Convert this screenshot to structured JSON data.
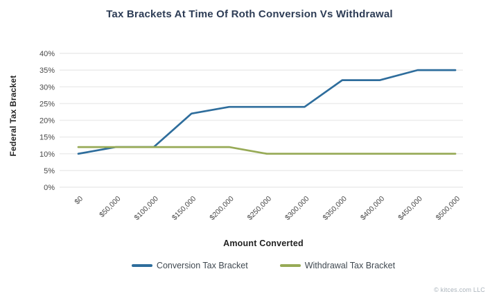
{
  "footer": "© kitces.com LLC",
  "colors": {
    "title": "#2d3c55",
    "grid": "#ececec",
    "tick_label": "#474747",
    "axis_title": "#1f1f1f",
    "legend_label": "#3f4850",
    "footer": "#aab3bb",
    "background": "#ffffff",
    "conversion_line": "#2e6d9c",
    "withdrawal_line": "#97aa56"
  },
  "chart_data": {
    "type": "line",
    "title": "Tax Brackets At Time Of Roth Conversion Vs Withdrawal",
    "xlabel": "Amount Converted",
    "ylabel": "Federal Tax Bracket",
    "categories": [
      "$0",
      "$50,000",
      "$100,000",
      "$150,000",
      "$200,000",
      "$250,000",
      "$300,000",
      "$350,000",
      "$400,000",
      "$450,000",
      "$500,000"
    ],
    "yticks": [
      "0%",
      "5%",
      "10%",
      "15%",
      "20%",
      "25%",
      "30%",
      "35%",
      "40%"
    ],
    "ylim": [
      0,
      40
    ],
    "grid": "horizontal",
    "legend_position": "bottom",
    "series": [
      {
        "name": "Conversion Tax Bracket",
        "color": "#2e6d9c",
        "values": [
          10,
          12,
          12,
          22,
          24,
          24,
          24,
          32,
          32,
          35,
          35
        ]
      },
      {
        "name": "Withdrawal Tax Bracket",
        "color": "#97aa56",
        "values": [
          12,
          12,
          12,
          12,
          12,
          10,
          10,
          10,
          10,
          10,
          10
        ]
      }
    ]
  }
}
